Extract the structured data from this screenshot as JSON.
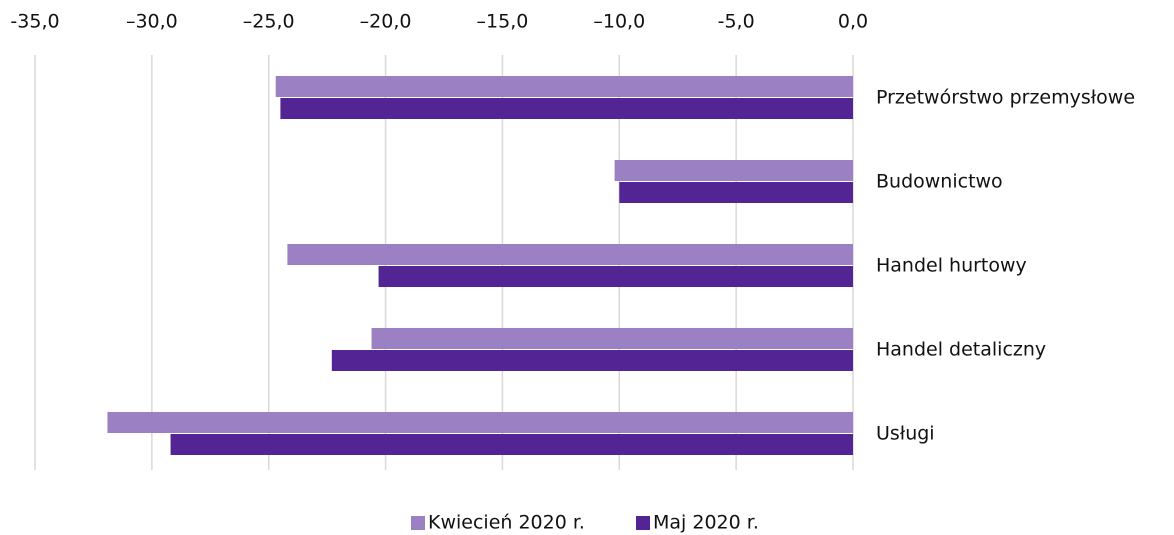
{
  "chart_data": {
    "type": "barh",
    "categories": [
      "Przetwórstwo przemysłowe",
      "Budownictwo",
      "Handel hurtowy",
      "Handel detaliczny",
      "Usługi"
    ],
    "series": [
      {
        "name": "Kwiecień 2020 r.",
        "color": "#9b80c4",
        "values": [
          -24.7,
          -10.2,
          -24.2,
          -20.6,
          -31.9
        ]
      },
      {
        "name": "Maj 2020 r.",
        "color": "#532594",
        "values": [
          -24.5,
          -10.0,
          -20.3,
          -22.3,
          -29.2
        ]
      }
    ],
    "xlim": [
      -35,
      0
    ],
    "xticks": [
      {
        "value": -35,
        "label": "-35,0"
      },
      {
        "value": -30,
        "label": "–30,0"
      },
      {
        "value": -25,
        "label": "–25,0"
      },
      {
        "value": -20,
        "label": "–20,0"
      },
      {
        "value": -15,
        "label": "–15,0"
      },
      {
        "value": -10,
        "label": "–10,0"
      },
      {
        "value": -5,
        "label": "-5,0"
      },
      {
        "value": 0,
        "label": "0,0"
      }
    ],
    "grid": true,
    "legend": "bottom"
  }
}
